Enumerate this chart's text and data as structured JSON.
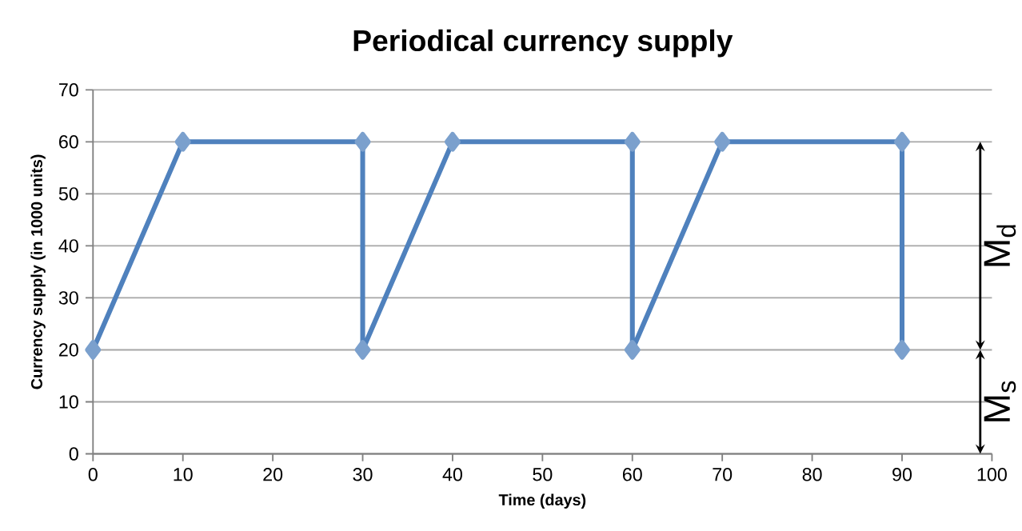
{
  "chart_data": {
    "type": "line",
    "title": "Periodical currency supply",
    "xlabel": "Time (days)",
    "ylabel": "Currency supply  (in 1000 units)",
    "x": [
      0,
      10,
      30,
      30,
      40,
      60,
      60,
      70,
      90,
      90
    ],
    "series": [
      {
        "color": "#4f81bd",
        "values": [
          20,
          60,
          60,
          20,
          60,
          60,
          20,
          60,
          60,
          20
        ]
      }
    ],
    "xlim": [
      0,
      100
    ],
    "xticks": [
      0,
      10,
      20,
      30,
      40,
      50,
      60,
      70,
      80,
      90,
      100
    ],
    "ylim": [
      0,
      70
    ],
    "yticks": [
      0,
      10,
      20,
      30,
      40,
      50,
      60,
      70
    ],
    "grid": "y",
    "marker": "diamond",
    "line_style": "solid",
    "annotations": [
      "M$_{d}$",
      "M$_{s}$"
    ]
  }
}
